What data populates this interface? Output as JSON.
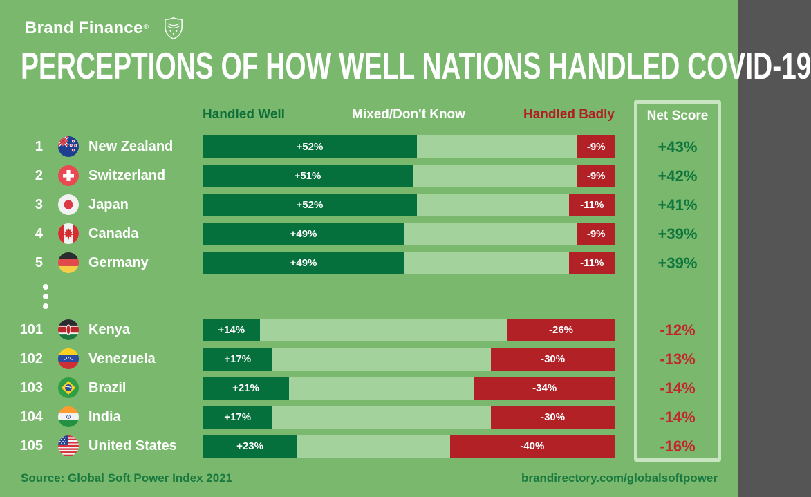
{
  "brand": {
    "logo_text": "Brand Finance",
    "registered_mark": "®",
    "shield_icon": "brand-finance-shield"
  },
  "title": "PERCEPTIONS OF HOW WELL NATIONS HANDLED COVID-19",
  "columns": {
    "handled_well": "Handled Well",
    "mixed": "Mixed/Don't Know",
    "handled_badly": "Handled Badly",
    "net_score": "Net Score"
  },
  "chart_data": {
    "type": "bar",
    "variant": "horizontal-stacked",
    "unit": "percent",
    "title": "PERCEPTIONS OF HOW WELL NATIONS HANDLED COVID-19",
    "series_labels": [
      "Handled Well",
      "Mixed/Don't Know",
      "Handled Badly"
    ],
    "axis_range": [
      0,
      100
    ],
    "legend_position": "top",
    "grid": false,
    "colors": {
      "bg": "#7ab96d",
      "well_color": "#06703c",
      "mixed_color": "#a3d29c",
      "badly_color": "#b22126",
      "header_green": "#0e6f3a",
      "header_red": "#ae2024",
      "net_pos": "#0e753e",
      "net_neg": "#c2262c",
      "net_border": "#c9e4c0",
      "footer_green": "#19793f"
    },
    "rows": [
      {
        "group": "top",
        "rank": "1",
        "country": "New Zealand",
        "flag": "new-zealand",
        "well": 52,
        "well_label": "+52%",
        "mixed": 39,
        "badly": 9,
        "badly_label": "-9%",
        "net": 43,
        "net_label": "+43%"
      },
      {
        "group": "top",
        "rank": "2",
        "country": "Switzerland",
        "flag": "switzerland",
        "well": 51,
        "well_label": "+51%",
        "mixed": 40,
        "badly": 9,
        "badly_label": "-9%",
        "net": 42,
        "net_label": "+42%"
      },
      {
        "group": "top",
        "rank": "3",
        "country": "Japan",
        "flag": "japan",
        "well": 52,
        "well_label": "+52%",
        "mixed": 37,
        "badly": 11,
        "badly_label": "-11%",
        "net": 41,
        "net_label": "+41%"
      },
      {
        "group": "top",
        "rank": "4",
        "country": "Canada",
        "flag": "canada",
        "well": 49,
        "well_label": "+49%",
        "mixed": 42,
        "badly": 9,
        "badly_label": "-9%",
        "net": 39,
        "net_label": "+39%"
      },
      {
        "group": "top",
        "rank": "5",
        "country": "Germany",
        "flag": "germany",
        "well": 49,
        "well_label": "+49%",
        "mixed": 40,
        "badly": 11,
        "badly_label": "-11%",
        "net": 39,
        "net_label": "+39%"
      },
      {
        "group": "bottom",
        "rank": "101",
        "country": "Kenya",
        "flag": "kenya",
        "well": 14,
        "well_label": "+14%",
        "mixed": 60,
        "badly": 26,
        "badly_label": "-26%",
        "net": -12,
        "net_label": "-12%"
      },
      {
        "group": "bottom",
        "rank": "102",
        "country": "Venezuela",
        "flag": "venezuela",
        "well": 17,
        "well_label": "+17%",
        "mixed": 53,
        "badly": 30,
        "badly_label": "-30%",
        "net": -13,
        "net_label": "-13%"
      },
      {
        "group": "bottom",
        "rank": "103",
        "country": "Brazil",
        "flag": "brazil",
        "well": 21,
        "well_label": "+21%",
        "mixed": 45,
        "badly": 34,
        "badly_label": "-34%",
        "net": -14,
        "net_label": "-14%"
      },
      {
        "group": "bottom",
        "rank": "104",
        "country": "India",
        "flag": "india",
        "well": 17,
        "well_label": "+17%",
        "mixed": 53,
        "badly": 30,
        "badly_label": "-30%",
        "net": -14,
        "net_label": "-14%"
      },
      {
        "group": "bottom",
        "rank": "105",
        "country": "United States",
        "flag": "united-states",
        "well": 23,
        "well_label": "+23%",
        "mixed": 37,
        "badly": 40,
        "badly_label": "-40%",
        "net": -16,
        "net_label": "-16%"
      }
    ]
  },
  "footer": {
    "source": "Source: Global Soft Power Index 2021",
    "link": "brandirectory.com/globalsoftpower"
  }
}
